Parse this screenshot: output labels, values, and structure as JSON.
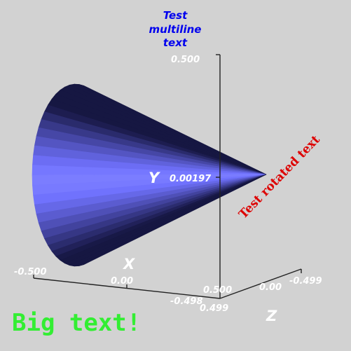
{
  "scene": {
    "background": "#d2d2d2",
    "surface_color": "#7b7dff",
    "axis_color": "#222222",
    "axes": {
      "x": {
        "name": "X",
        "min_label": "-0.500",
        "mid_label": "0.00",
        "max_label": "-0.498"
      },
      "y": {
        "name": "Y",
        "max_label": "0.500",
        "mid_label": "0.00197"
      },
      "z": {
        "name": "Z",
        "min_label": "0.499",
        "mid_label": "0.00",
        "max_label": "-0.499",
        "corner_label": "0.500"
      }
    },
    "annotations": {
      "multiline": {
        "lines": [
          "Test",
          "multiline",
          "text"
        ],
        "color": "#0000ee"
      },
      "rotated": {
        "text": "Test rotated text",
        "color": "#dd0000"
      },
      "big": {
        "text": "Big text!",
        "color": "#33ee33"
      }
    }
  }
}
